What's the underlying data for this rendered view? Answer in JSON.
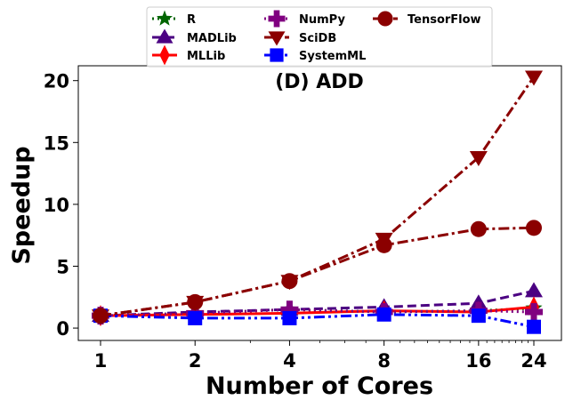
{
  "chart_data": {
    "type": "line",
    "title": "(D) ADD",
    "xlabel": "Number of Cores",
    "ylabel": "Speedup",
    "x_scale": "log2",
    "x": [
      1,
      2,
      4,
      8,
      16,
      24
    ],
    "x_tick_labels": [
      "1",
      "2",
      "4",
      "8",
      "16",
      "24"
    ],
    "y_ticks": [
      0,
      5,
      10,
      15,
      20
    ],
    "ylim": [
      -1,
      21.2
    ],
    "grid": false,
    "legend_placement": "top-center",
    "series": [
      {
        "name": "R",
        "color": "#006400",
        "marker": "star",
        "dash": "dotted",
        "values": [
          1.0,
          1.2,
          1.5,
          1.3,
          1.4,
          1.6
        ]
      },
      {
        "name": "MADLib",
        "color": "#4B0082",
        "marker": "triangle-up",
        "dash": "dashed",
        "values": [
          1.0,
          1.3,
          1.5,
          1.7,
          2.0,
          3.0
        ]
      },
      {
        "name": "MLLib",
        "color": "#FF0000",
        "marker": "thin-diamond",
        "dash": "solid",
        "values": [
          1.0,
          1.1,
          1.2,
          1.4,
          1.3,
          1.7
        ]
      },
      {
        "name": "NumPy",
        "color": "#800080",
        "marker": "plus",
        "dash": "dotted",
        "values": [
          1.0,
          1.2,
          1.5,
          1.3,
          1.4,
          1.3
        ]
      },
      {
        "name": "SciDB",
        "color": "#8B0000",
        "marker": "triangle-down",
        "dash": "dashdot",
        "values": [
          1.0,
          2.1,
          3.8,
          7.2,
          13.8,
          20.3
        ]
      },
      {
        "name": "SystemML",
        "color": "#0000FF",
        "marker": "square",
        "dash": "dashdotdot",
        "values": [
          1.0,
          0.8,
          0.8,
          1.1,
          1.0,
          0.1
        ]
      },
      {
        "name": "TensorFlow",
        "color": "#8B0000",
        "marker": "circle",
        "dash": "dashdot",
        "values": [
          1.0,
          2.1,
          3.8,
          6.7,
          8.0,
          8.1
        ]
      }
    ]
  }
}
